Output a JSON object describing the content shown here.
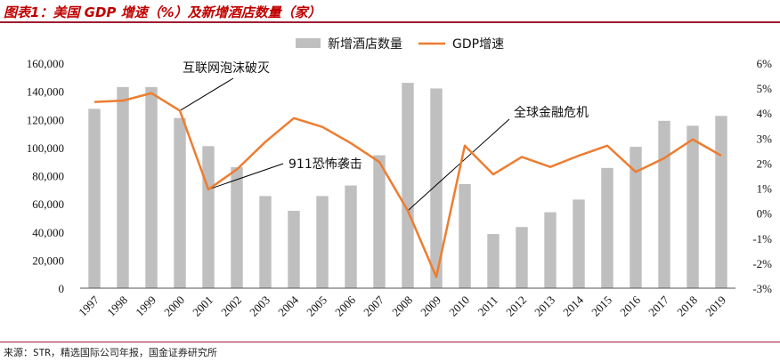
{
  "title": "图表1：美国 GDP 增速（%）及新增酒店数量（家）",
  "source": "来源：STR，精选国际公司年报，国金证券研究所",
  "colors": {
    "bar": "#bfbfbf",
    "line": "#ed7d31",
    "title": "#c00000",
    "rule": "#9e1b32"
  },
  "chart_data": {
    "type": "bar+line",
    "categories": [
      "1997",
      "1998",
      "1999",
      "2000",
      "2001",
      "2002",
      "2003",
      "2004",
      "2005",
      "2006",
      "2007",
      "2008",
      "2009",
      "2010",
      "2011",
      "2012",
      "2013",
      "2014",
      "2015",
      "2016",
      "2017",
      "2018",
      "2019"
    ],
    "series": [
      {
        "name": "新增酒店数量",
        "type": "bar",
        "axis": "left",
        "values": [
          127500,
          143000,
          143000,
          121000,
          101000,
          86000,
          65500,
          55000,
          65500,
          73000,
          94500,
          146000,
          142000,
          74000,
          38500,
          43500,
          54000,
          63000,
          85500,
          100500,
          119000,
          115500,
          122500
        ]
      },
      {
        "name": "GDP增速",
        "type": "line",
        "axis": "right",
        "values": [
          4.45,
          4.5,
          4.8,
          4.1,
          0.95,
          1.75,
          2.85,
          3.8,
          3.45,
          2.8,
          2.05,
          0.1,
          -2.55,
          2.7,
          1.55,
          2.25,
          1.85,
          2.3,
          2.7,
          1.65,
          2.2,
          2.95,
          2.3
        ]
      }
    ],
    "y_left": {
      "min": 0,
      "max": 160000,
      "step": 20000,
      "ticks": [
        "0",
        "20,000",
        "40,000",
        "60,000",
        "80,000",
        "100,000",
        "120,000",
        "140,000",
        "160,000"
      ]
    },
    "y_right": {
      "min": -3,
      "max": 6,
      "step": 1,
      "ticks": [
        "-3%",
        "-2%",
        "-1%",
        "0%",
        "1%",
        "2%",
        "3%",
        "4%",
        "5%",
        "6%"
      ]
    },
    "legend": [
      "新增酒店数量",
      "GDP增速"
    ],
    "annotations": [
      {
        "text": "互联网泡沫破灭",
        "year": "2000"
      },
      {
        "text": "911恐怖袭击",
        "year": "2001"
      },
      {
        "text": "全球金融危机",
        "year": "2008"
      }
    ]
  }
}
